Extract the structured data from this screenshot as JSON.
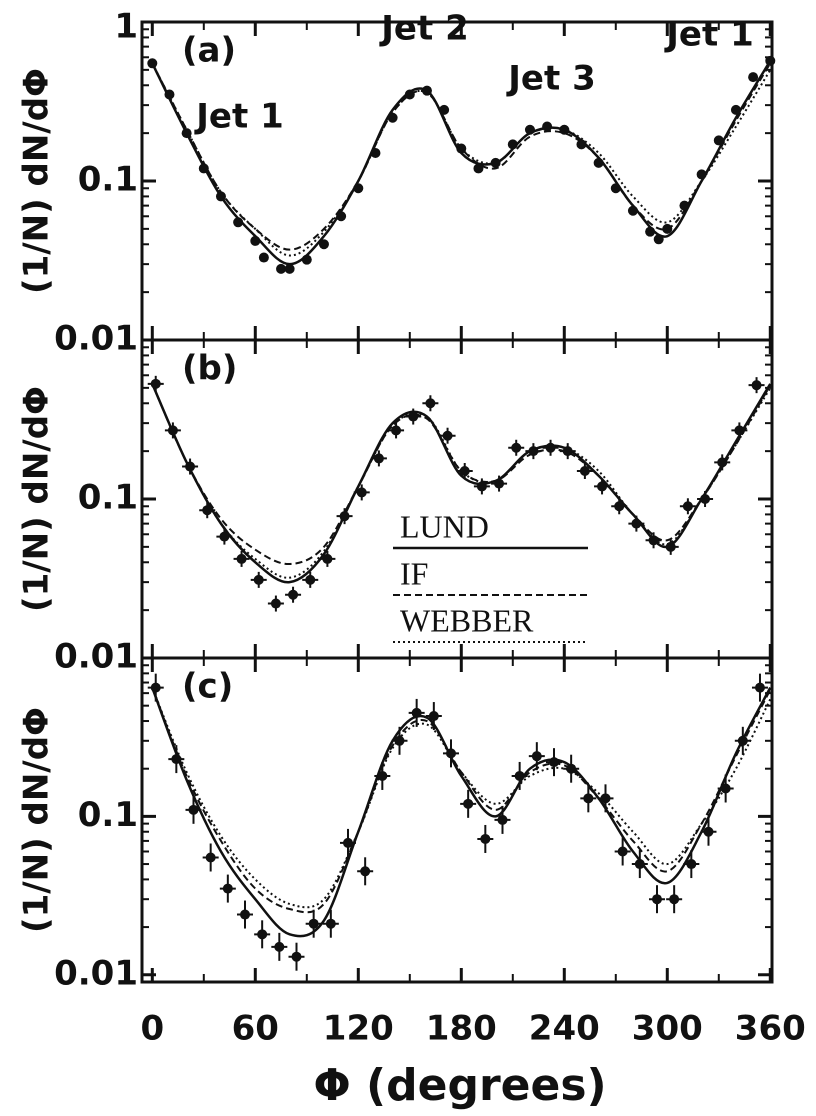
{
  "chart_data": [
    {
      "type": "line",
      "label": "(a)",
      "annotations": [
        "Jet 1",
        "Jet 2",
        "Jet 3",
        "Jet 1"
      ],
      "ylabel": "(1/N) dN/dΦ",
      "log_y": true,
      "xlim": [
        -6,
        361
      ],
      "ylim": [
        0.01,
        1
      ],
      "xticks": [
        0,
        60,
        120,
        180,
        240,
        300,
        360
      ],
      "yticks": [
        1,
        0.1,
        0.01
      ],
      "x": [
        0,
        20,
        40,
        60,
        80,
        100,
        120,
        140,
        160,
        180,
        200,
        220,
        240,
        260,
        280,
        300,
        320,
        340,
        360
      ],
      "series": [
        {
          "name": "LUND",
          "color": "#111111",
          "dash": "solid",
          "values": [
            0.55,
            0.2,
            0.08,
            0.045,
            0.03,
            0.045,
            0.1,
            0.28,
            0.37,
            0.15,
            0.13,
            0.2,
            0.21,
            0.14,
            0.07,
            0.045,
            0.1,
            0.25,
            0.57
          ]
        },
        {
          "name": "IF",
          "color": "#111111",
          "dash": "dashed",
          "values": [
            0.55,
            0.21,
            0.085,
            0.05,
            0.037,
            0.05,
            0.1,
            0.27,
            0.36,
            0.16,
            0.12,
            0.19,
            0.2,
            0.14,
            0.07,
            0.05,
            0.1,
            0.24,
            0.55
          ]
        },
        {
          "name": "WEBBER",
          "color": "#111111",
          "dash": "dotted",
          "values": [
            0.55,
            0.21,
            0.085,
            0.05,
            0.034,
            0.048,
            0.1,
            0.27,
            0.36,
            0.16,
            0.13,
            0.2,
            0.21,
            0.15,
            0.08,
            0.055,
            0.1,
            0.22,
            0.5
          ]
        }
      ],
      "points": {
        "x": [
          0,
          10,
          20,
          30,
          40,
          50,
          60,
          65,
          75,
          80,
          90,
          100,
          110,
          120,
          130,
          140,
          150,
          160,
          170,
          180,
          190,
          200,
          210,
          220,
          230,
          240,
          250,
          260,
          270,
          280,
          290,
          295,
          300,
          310,
          320,
          330,
          340,
          350,
          360
        ],
        "values": [
          0.55,
          0.35,
          0.2,
          0.12,
          0.08,
          0.055,
          0.042,
          0.033,
          0.028,
          0.028,
          0.032,
          0.04,
          0.06,
          0.09,
          0.15,
          0.25,
          0.35,
          0.37,
          0.28,
          0.16,
          0.12,
          0.13,
          0.17,
          0.21,
          0.22,
          0.21,
          0.17,
          0.13,
          0.09,
          0.065,
          0.048,
          0.043,
          0.05,
          0.07,
          0.11,
          0.18,
          0.28,
          0.45,
          0.57
        ]
      }
    },
    {
      "type": "line",
      "label": "(b)",
      "legend": true,
      "ylabel": "(1/N) dN/dΦ",
      "log_y": true,
      "xlim": [
        -6,
        361
      ],
      "ylim": [
        0.01,
        1
      ],
      "xticks": [
        0,
        60,
        120,
        180,
        240,
        300,
        360
      ],
      "yticks": [
        0.1,
        0.01
      ],
      "x": [
        0,
        20,
        40,
        60,
        80,
        100,
        120,
        140,
        160,
        180,
        200,
        220,
        240,
        260,
        280,
        300,
        320,
        340,
        360
      ],
      "series": [
        {
          "name": "LUND",
          "color": "#111111",
          "dash": "solid",
          "values": [
            0.53,
            0.17,
            0.07,
            0.04,
            0.03,
            0.045,
            0.12,
            0.3,
            0.33,
            0.14,
            0.13,
            0.2,
            0.21,
            0.14,
            0.08,
            0.05,
            0.1,
            0.23,
            0.53
          ]
        },
        {
          "name": "IF",
          "color": "#111111",
          "dash": "dashed",
          "values": [
            0.53,
            0.17,
            0.075,
            0.048,
            0.039,
            0.05,
            0.12,
            0.29,
            0.32,
            0.15,
            0.13,
            0.19,
            0.2,
            0.14,
            0.08,
            0.055,
            0.1,
            0.22,
            0.52
          ]
        },
        {
          "name": "WEBBER",
          "color": "#111111",
          "dash": "dotted",
          "values": [
            0.53,
            0.17,
            0.07,
            0.042,
            0.032,
            0.047,
            0.12,
            0.29,
            0.33,
            0.15,
            0.13,
            0.2,
            0.21,
            0.15,
            0.08,
            0.052,
            0.1,
            0.22,
            0.5
          ]
        }
      ],
      "points": {
        "x": [
          2,
          12,
          22,
          32,
          42,
          52,
          62,
          72,
          82,
          92,
          102,
          112,
          122,
          132,
          142,
          152,
          162,
          172,
          182,
          192,
          202,
          212,
          222,
          232,
          242,
          252,
          262,
          272,
          282,
          292,
          302,
          312,
          322,
          332,
          342,
          352
        ],
        "values": [
          0.53,
          0.27,
          0.16,
          0.085,
          0.058,
          0.042,
          0.031,
          0.022,
          0.025,
          0.031,
          0.042,
          0.078,
          0.11,
          0.18,
          0.27,
          0.33,
          0.4,
          0.25,
          0.15,
          0.12,
          0.125,
          0.21,
          0.2,
          0.21,
          0.2,
          0.15,
          0.12,
          0.09,
          0.07,
          0.055,
          0.05,
          0.09,
          0.1,
          0.17,
          0.27,
          0.52
        ]
      }
    },
    {
      "type": "line",
      "label": "(c)",
      "xlabel": "Φ (degrees)",
      "ylabel": "(1/N) dN/dΦ",
      "log_y": true,
      "xlim": [
        -6,
        361
      ],
      "ylim": [
        0.009,
        1
      ],
      "xticks": [
        0,
        60,
        120,
        180,
        240,
        300,
        360
      ],
      "yticks": [
        0.1,
        0.01
      ],
      "x": [
        0,
        20,
        40,
        60,
        80,
        100,
        120,
        140,
        160,
        180,
        200,
        220,
        240,
        260,
        280,
        300,
        320,
        340,
        360
      ],
      "series": [
        {
          "name": "LUND",
          "color": "#111111",
          "dash": "solid",
          "values": [
            0.65,
            0.17,
            0.06,
            0.03,
            0.018,
            0.022,
            0.08,
            0.3,
            0.42,
            0.18,
            0.1,
            0.2,
            0.22,
            0.13,
            0.06,
            0.038,
            0.08,
            0.25,
            0.65
          ]
        },
        {
          "name": "IF",
          "color": "#111111",
          "dash": "dashed",
          "values": [
            0.65,
            0.18,
            0.07,
            0.035,
            0.026,
            0.028,
            0.08,
            0.28,
            0.4,
            0.19,
            0.11,
            0.19,
            0.21,
            0.13,
            0.07,
            0.045,
            0.09,
            0.24,
            0.63
          ]
        },
        {
          "name": "WEBBER",
          "color": "#111111",
          "dash": "dotted",
          "values": [
            0.65,
            0.19,
            0.075,
            0.04,
            0.028,
            0.03,
            0.08,
            0.27,
            0.38,
            0.19,
            0.12,
            0.18,
            0.2,
            0.14,
            0.08,
            0.05,
            0.09,
            0.2,
            0.55
          ]
        }
      ],
      "points": {
        "x": [
          2,
          14,
          24,
          34,
          44,
          54,
          64,
          74,
          84,
          94,
          104,
          114,
          124,
          134,
          144,
          154,
          164,
          174,
          184,
          194,
          204,
          214,
          224,
          234,
          244,
          254,
          264,
          274,
          284,
          294,
          304,
          314,
          324,
          334,
          344,
          354
        ],
        "values": [
          0.65,
          0.23,
          0.11,
          0.055,
          0.035,
          0.024,
          0.018,
          0.015,
          0.013,
          0.021,
          0.021,
          0.068,
          0.045,
          0.18,
          0.3,
          0.45,
          0.43,
          0.25,
          0.12,
          0.072,
          0.095,
          0.18,
          0.24,
          0.22,
          0.2,
          0.13,
          0.13,
          0.06,
          0.05,
          0.03,
          0.03,
          0.05,
          0.08,
          0.15,
          0.3,
          0.65
        ]
      }
    }
  ]
}
